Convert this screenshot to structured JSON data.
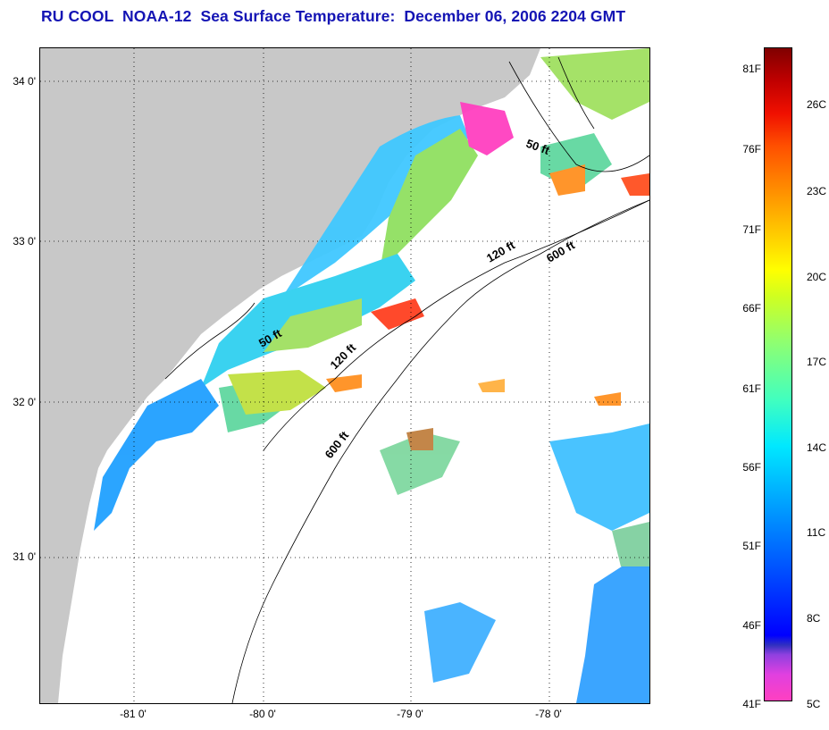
{
  "title": "RU COOL  NOAA-12  Sea Surface Temperature:  December 06, 2006 2204 GMT",
  "lat_labels": [
    "34 0'",
    "33 0'",
    "32 0'",
    "31 0'"
  ],
  "lon_labels": [
    "-81 0'",
    "-80 0'",
    "-79 0'",
    "-78 0'"
  ],
  "isobath_labels": [
    "50 ft",
    "120 ft",
    "600 ft",
    "50 ft",
    "120 ft",
    "600 ft"
  ],
  "colorbar": {
    "fahrenheit": [
      "81F",
      "76F",
      "71F",
      "66F",
      "61F",
      "56F",
      "51F",
      "46F",
      "41F"
    ],
    "celsius": [
      "26C",
      "23C",
      "20C",
      "17C",
      "14C",
      "11C",
      "8C",
      "5C"
    ]
  },
  "colors": {
    "land": "#c8c8c8",
    "cloud": "#ffffff",
    "title": "#1414b4"
  }
}
